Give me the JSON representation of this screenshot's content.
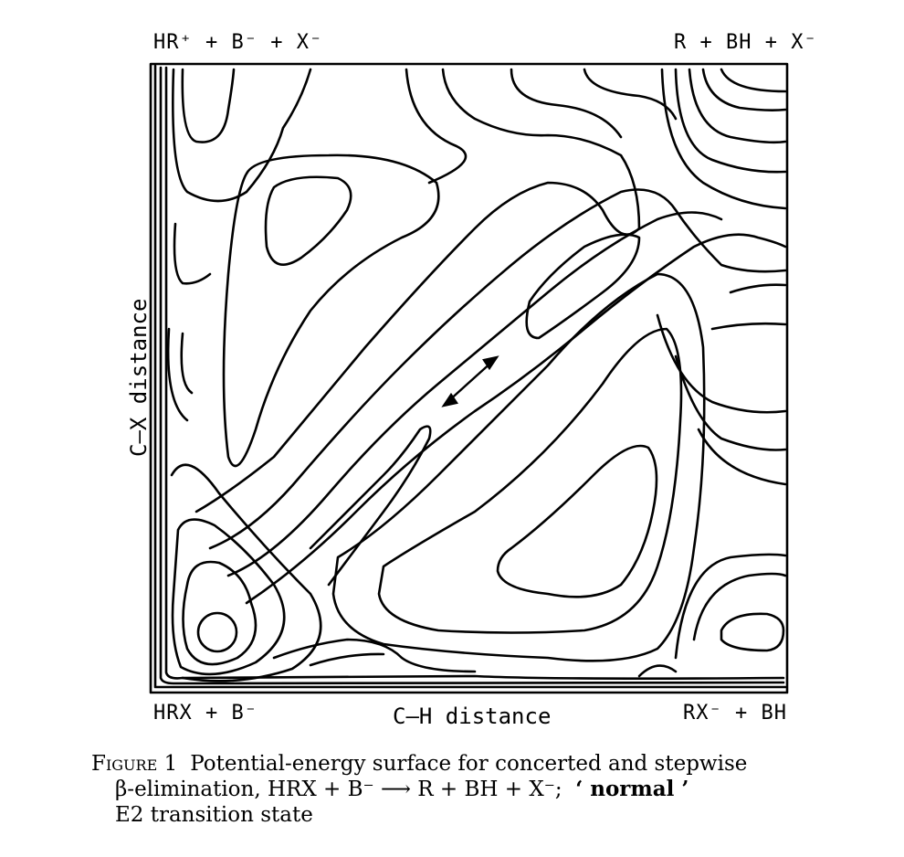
{
  "corners": {
    "top_left": "HR⁺ + B⁻ + X⁻",
    "top_right": "R + BH + X⁻",
    "bottom_left": "HRX + B⁻",
    "bottom_right": "RX⁻ + BH"
  },
  "axes": {
    "x_label": "C–H distance",
    "y_label": "C–X distance"
  },
  "caption": {
    "figure_label": "Figure 1",
    "line1": "Potential-energy surface for concerted and stepwise",
    "line2_a": "β-elimination, HRX + B⁻",
    "line2_arrow": "⟶",
    "line2_b": "R + BH + X⁻;",
    "line2_quote": "‘ normal ’",
    "line3": "E2 transition state"
  }
}
